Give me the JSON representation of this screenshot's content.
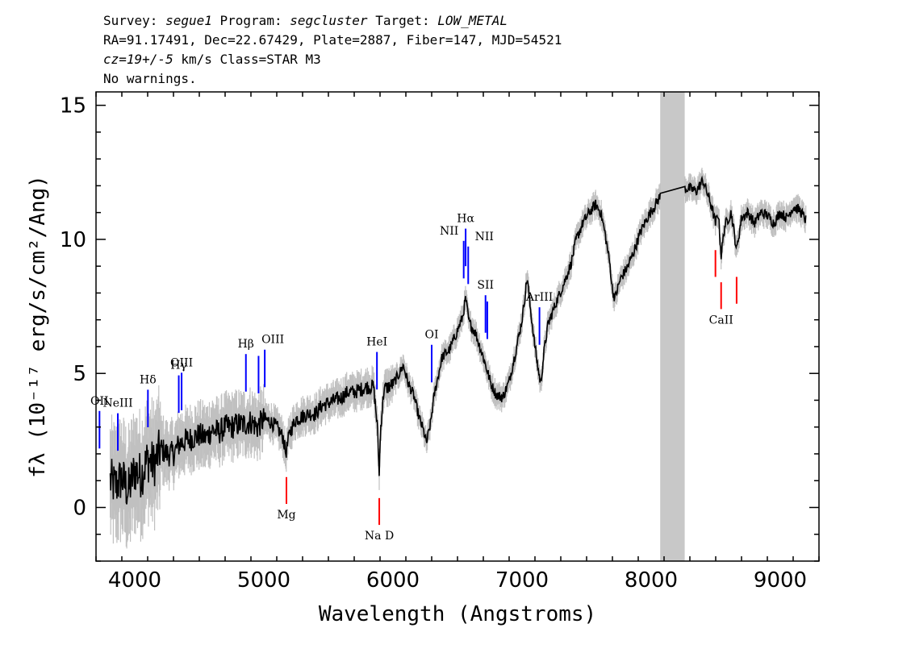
{
  "header": {
    "survey_label": "Survey:",
    "survey": "segue1",
    "program_label": "Program:",
    "program": "segcluster",
    "target_label": "Target:",
    "target": "LOW_METAL",
    "line2": "RA=91.17491, Dec=22.67429, Plate=2887, Fiber=147, MJD=54521",
    "cz": "cz=19+/-5",
    "cz_rest": " km/s Class=STAR M3",
    "line4": "No warnings."
  },
  "chart_data": {
    "type": "line",
    "xlabel": "Wavelength (Angstroms)",
    "ylabel": "fλ (10⁻¹⁷ erg/s/cm²/Ang)",
    "xlim": [
      3700,
      9300
    ],
    "ylim": [
      -2,
      15.5
    ],
    "x_ticks": [
      4000,
      5000,
      6000,
      7000,
      8000,
      9000
    ],
    "y_ticks": [
      0,
      5,
      10,
      15
    ],
    "grid": false,
    "masked_region": [
      8070,
      8260
    ],
    "colors": {
      "spectrum": "#000000",
      "error": "#c0c0c0",
      "emission": "#0000ff",
      "absorption": "#ff0000",
      "mask": "#c8c8c8"
    },
    "spectrum_points": [
      [
        3810,
        1.0
      ],
      [
        3850,
        0.8
      ],
      [
        3900,
        1.1
      ],
      [
        3950,
        0.6
      ],
      [
        4000,
        1.4
      ],
      [
        4050,
        1.2
      ],
      [
        4100,
        1.8
      ],
      [
        4150,
        1.6
      ],
      [
        4200,
        2.2
      ],
      [
        4250,
        2.0
      ],
      [
        4300,
        2.0
      ],
      [
        4350,
        2.4
      ],
      [
        4400,
        2.5
      ],
      [
        4450,
        2.6
      ],
      [
        4500,
        2.7
      ],
      [
        4550,
        2.6
      ],
      [
        4600,
        2.9
      ],
      [
        4650,
        2.8
      ],
      [
        4700,
        3.0
      ],
      [
        4750,
        3.0
      ],
      [
        4800,
        3.1
      ],
      [
        4850,
        3.1
      ],
      [
        4900,
        3.2
      ],
      [
        4950,
        3.0
      ],
      [
        5000,
        3.3
      ],
      [
        5050,
        3.2
      ],
      [
        5100,
        3.0
      ],
      [
        5150,
        2.6
      ],
      [
        5170,
        2.0
      ],
      [
        5200,
        2.8
      ],
      [
        5250,
        3.3
      ],
      [
        5300,
        3.4
      ],
      [
        5350,
        3.5
      ],
      [
        5400,
        3.5
      ],
      [
        5450,
        3.8
      ],
      [
        5500,
        3.9
      ],
      [
        5550,
        4.0
      ],
      [
        5600,
        4.1
      ],
      [
        5650,
        4.3
      ],
      [
        5700,
        4.3
      ],
      [
        5750,
        4.4
      ],
      [
        5800,
        4.5
      ],
      [
        5850,
        4.5
      ],
      [
        5880,
        3.0
      ],
      [
        5893,
        1.2
      ],
      [
        5905,
        3.0
      ],
      [
        5930,
        4.4
      ],
      [
        6000,
        4.6
      ],
      [
        6050,
        5.0
      ],
      [
        6080,
        5.3
      ],
      [
        6120,
        4.6
      ],
      [
        6160,
        4.2
      ],
      [
        6200,
        3.4
      ],
      [
        6240,
        2.8
      ],
      [
        6260,
        2.4
      ],
      [
        6290,
        3.1
      ],
      [
        6320,
        4.2
      ],
      [
        6380,
        5.6
      ],
      [
        6440,
        5.9
      ],
      [
        6500,
        6.6
      ],
      [
        6540,
        7.1
      ],
      [
        6563,
        7.8
      ],
      [
        6590,
        6.9
      ],
      [
        6640,
        6.5
      ],
      [
        6700,
        5.6
      ],
      [
        6760,
        4.6
      ],
      [
        6800,
        4.2
      ],
      [
        6850,
        4.1
      ],
      [
        6900,
        4.7
      ],
      [
        6950,
        5.8
      ],
      [
        7000,
        7.0
      ],
      [
        7040,
        8.6
      ],
      [
        7060,
        7.6
      ],
      [
        7100,
        6.0
      ],
      [
        7130,
        5.0
      ],
      [
        7145,
        4.6
      ],
      [
        7170,
        5.8
      ],
      [
        7200,
        6.8
      ],
      [
        7260,
        7.6
      ],
      [
        7320,
        8.3
      ],
      [
        7380,
        9.1
      ],
      [
        7420,
        10.0
      ],
      [
        7470,
        10.6
      ],
      [
        7520,
        11.0
      ],
      [
        7570,
        11.3
      ],
      [
        7610,
        11.0
      ],
      [
        7640,
        10.3
      ],
      [
        7680,
        9.1
      ],
      [
        7700,
        8.1
      ],
      [
        7720,
        7.8
      ],
      [
        7760,
        8.5
      ],
      [
        7820,
        9.0
      ],
      [
        7870,
        9.6
      ],
      [
        7920,
        10.3
      ],
      [
        7970,
        10.8
      ],
      [
        8020,
        11.2
      ],
      [
        8070,
        11.6
      ],
      [
        8260,
        11.9
      ],
      [
        8300,
        11.9
      ],
      [
        8350,
        11.8
      ],
      [
        8400,
        12.2
      ],
      [
        8430,
        11.8
      ],
      [
        8470,
        11.2
      ],
      [
        8498,
        10.6
      ],
      [
        8520,
        11.0
      ],
      [
        8542,
        9.4
      ],
      [
        8570,
        10.5
      ],
      [
        8620,
        11.0
      ],
      [
        8662,
        9.6
      ],
      [
        8700,
        10.8
      ],
      [
        8750,
        11.0
      ],
      [
        8800,
        10.6
      ],
      [
        8850,
        11.0
      ],
      [
        8900,
        10.9
      ],
      [
        8950,
        10.6
      ],
      [
        9000,
        11.0
      ],
      [
        9050,
        10.8
      ],
      [
        9100,
        11.2
      ],
      [
        9150,
        11.1
      ],
      [
        9200,
        10.7
      ]
    ],
    "spectral_lines": [
      {
        "name": "OII",
        "wavelength": 3727,
        "kind": "emission"
      },
      {
        "name": "NeIII",
        "wavelength": 3869,
        "kind": "emission"
      },
      {
        "name": "Hδ",
        "wavelength": 4102,
        "kind": "emission"
      },
      {
        "name": "Hγ",
        "wavelength": 4341,
        "kind": "emission"
      },
      {
        "name": "OIII",
        "wavelength": 4363,
        "kind": "emission"
      },
      {
        "name": "Hβ",
        "wavelength": 4861,
        "kind": "emission"
      },
      {
        "name": "OIII",
        "wavelength": 4959,
        "kind": "emission"
      },
      {
        "name": "OIII",
        "wavelength": 5007,
        "kind": "emission"
      },
      {
        "name": "HeI",
        "wavelength": 5876,
        "kind": "emission"
      },
      {
        "name": "OI",
        "wavelength": 6300,
        "kind": "emission"
      },
      {
        "name": "NII",
        "wavelength": 6548,
        "kind": "emission"
      },
      {
        "name": "Hα",
        "wavelength": 6563,
        "kind": "emission"
      },
      {
        "name": "NII",
        "wavelength": 6583,
        "kind": "emission"
      },
      {
        "name": "SII",
        "wavelength": 6717,
        "kind": "emission"
      },
      {
        "name": "SII",
        "wavelength": 6731,
        "kind": "emission"
      },
      {
        "name": "ArIII",
        "wavelength": 7135,
        "kind": "emission"
      },
      {
        "name": "Mg",
        "wavelength": 5175,
        "kind": "absorption"
      },
      {
        "name": "Na D",
        "wavelength": 5894,
        "kind": "absorption"
      },
      {
        "name": "CaII",
        "wavelength": 8498,
        "kind": "absorption"
      },
      {
        "name": "CaII",
        "wavelength": 8542,
        "kind": "absorption"
      },
      {
        "name": "CaII",
        "wavelength": 8662,
        "kind": "absorption"
      }
    ]
  }
}
